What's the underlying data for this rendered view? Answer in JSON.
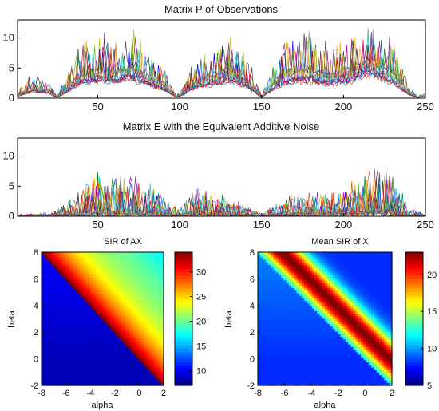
{
  "chart_data": [
    {
      "type": "line",
      "title": "Matrix P of Observations",
      "xlim": [
        1,
        250
      ],
      "ylim": [
        0,
        13
      ],
      "xticks": [
        50,
        100,
        150,
        200,
        250
      ],
      "yticks": [
        0,
        5,
        10
      ],
      "series_count": 14,
      "envelope": {
        "x": [
          1,
          10,
          20,
          25,
          30,
          40,
          50,
          60,
          70,
          75,
          80,
          90,
          98,
          102,
          110,
          120,
          130,
          140,
          145,
          150,
          160,
          170,
          180,
          190,
          198,
          205,
          210,
          220,
          230,
          240,
          245,
          250
        ],
        "y": [
          0.5,
          2.0,
          1.5,
          0.2,
          1.5,
          4.5,
          5.0,
          4.5,
          6.0,
          5.0,
          4.0,
          2.5,
          0.3,
          1.0,
          3.0,
          4.0,
          5.0,
          3.5,
          2.0,
          0.2,
          3.5,
          5.0,
          5.0,
          4.0,
          4.5,
          5.0,
          6.5,
          6.5,
          4.5,
          1.0,
          0.2,
          0.5
        ]
      },
      "peak_max": 12.5,
      "grid": false,
      "legend": "none"
    },
    {
      "type": "line",
      "title": "Matrix E with the Equivalent Additive Noise",
      "xlim": [
        1,
        250
      ],
      "ylim": [
        0,
        13
      ],
      "xticks": [
        50,
        100,
        150,
        200,
        250
      ],
      "yticks": [
        0,
        5,
        10
      ],
      "series_count": 14,
      "envelope": {
        "x": [
          1,
          20,
          30,
          40,
          50,
          60,
          70,
          80,
          90,
          100,
          110,
          120,
          130,
          140,
          150,
          160,
          170,
          180,
          190,
          200,
          210,
          220,
          230,
          240,
          250
        ],
        "y": [
          0.3,
          0.4,
          1.5,
          4.0,
          5.5,
          5.0,
          5.5,
          5.0,
          2.5,
          1.0,
          4.0,
          3.0,
          2.5,
          1.5,
          0.3,
          2.0,
          3.0,
          3.0,
          3.5,
          4.0,
          5.0,
          7.0,
          6.0,
          1.0,
          0.3
        ]
      },
      "peak_max": 8.0,
      "grid": false,
      "legend": "none"
    },
    {
      "type": "heatmap",
      "title": "SIR of AX",
      "xlabel": "alpha",
      "ylabel": "beta",
      "xlim": [
        -8,
        2
      ],
      "ylim": [
        -2,
        8
      ],
      "xticks": [
        -8,
        -6,
        -4,
        -2,
        0,
        2
      ],
      "yticks": [
        -2,
        0,
        2,
        4,
        6,
        8
      ],
      "clim": [
        7,
        34
      ],
      "colorbar_ticks": [
        10,
        15,
        20,
        25,
        30
      ],
      "colormap": "jet",
      "boundary": "alpha + beta = 0",
      "description_values": {
        "left_of_boundary": 8,
        "near_boundary": 34,
        "far_right": 18
      }
    },
    {
      "type": "heatmap",
      "title": "Mean SIR of X",
      "xlabel": "alpha",
      "ylabel": "beta",
      "xlim": [
        -8,
        2
      ],
      "ylim": [
        -2,
        8
      ],
      "xticks": [
        -8,
        -6,
        -4,
        -2,
        0,
        2
      ],
      "yticks": [
        -2,
        0,
        2,
        4,
        6,
        8
      ],
      "clim": [
        5,
        23
      ],
      "colorbar_ticks": [
        5,
        10,
        15,
        20
      ],
      "colormap": "jet",
      "boundary": "alpha + beta = 0",
      "description_values": {
        "left_of_boundary": 8,
        "ridge": 23,
        "far_right": 8
      }
    }
  ],
  "colors": {
    "series": [
      "#0000ff",
      "#008000",
      "#ff0000",
      "#00bfbf",
      "#bf00bf",
      "#bfbf00",
      "#404040",
      "#0072bd",
      "#d95319",
      "#edb120",
      "#7e2f8e",
      "#77ac30",
      "#4dbeee",
      "#a2142f"
    ]
  }
}
